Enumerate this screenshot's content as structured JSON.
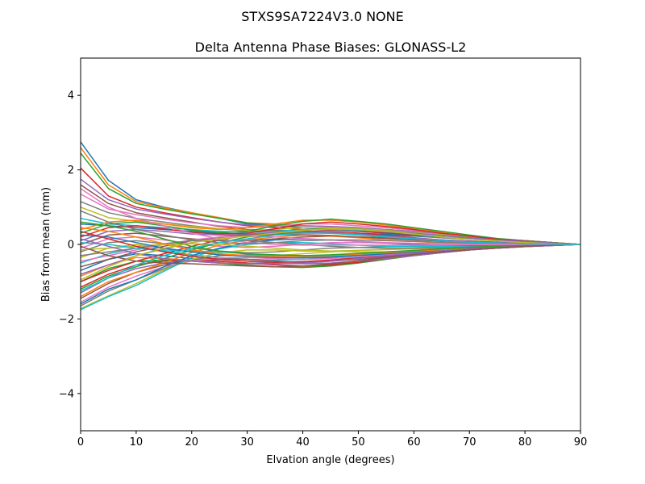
{
  "chart_data": {
    "type": "line",
    "suptitle": "STXS9SA7224V3.0 NONE",
    "title": "Delta Antenna Phase Biases: GLONASS-L2",
    "xlabel": "Elvation angle (degrees)",
    "ylabel": "Bias from mean (mm)",
    "xlim": [
      0,
      90
    ],
    "ylim": [
      -5,
      5
    ],
    "xticks": [
      0,
      10,
      20,
      30,
      40,
      50,
      60,
      70,
      80,
      90
    ],
    "yticks": [
      -4,
      -2,
      0,
      2,
      4
    ],
    "ytick_labels": [
      "−4",
      "−2",
      "0",
      "2",
      "4"
    ],
    "grid": false,
    "legend": "none",
    "palette": [
      "#1f77b4",
      "#ff7f0e",
      "#2ca02c",
      "#d62728",
      "#9467bd",
      "#8c564b",
      "#e377c2",
      "#7f7f7f",
      "#bcbd22",
      "#17becf"
    ],
    "x": [
      0,
      5,
      10,
      15,
      20,
      25,
      30,
      35,
      40,
      45,
      50,
      55,
      60,
      65,
      70,
      75,
      80,
      85,
      90
    ],
    "series": [
      {
        "values": [
          2.75,
          1.72,
          1.2,
          1.0,
          0.85,
          0.7,
          0.55,
          0.5,
          0.45,
          0.4,
          0.35,
          0.32,
          0.3,
          0.25,
          0.2,
          0.15,
          0.1,
          0.05,
          0.0
        ]
      },
      {
        "values": [
          2.6,
          1.6,
          1.15,
          0.98,
          0.85,
          0.72,
          0.58,
          0.55,
          0.5,
          0.48,
          0.45,
          0.4,
          0.35,
          0.28,
          0.2,
          0.14,
          0.1,
          0.05,
          0.0
        ]
      },
      {
        "values": [
          2.45,
          1.5,
          1.1,
          0.95,
          0.82,
          0.7,
          0.58,
          0.52,
          0.45,
          0.42,
          0.38,
          0.34,
          0.3,
          0.24,
          0.18,
          0.12,
          0.08,
          0.04,
          0.0
        ]
      },
      {
        "values": [
          2.05,
          1.3,
          1.0,
          0.85,
          0.72,
          0.6,
          0.5,
          0.45,
          0.4,
          0.38,
          0.35,
          0.3,
          0.26,
          0.2,
          0.15,
          0.1,
          0.06,
          0.03,
          0.0
        ]
      },
      {
        "values": [
          1.75,
          1.2,
          0.95,
          0.82,
          0.7,
          0.6,
          0.52,
          0.5,
          0.5,
          0.48,
          0.45,
          0.4,
          0.35,
          0.28,
          0.2,
          0.14,
          0.1,
          0.05,
          0.0
        ]
      },
      {
        "values": [
          1.6,
          1.1,
          0.85,
          0.72,
          0.6,
          0.48,
          0.4,
          0.38,
          0.35,
          0.32,
          0.3,
          0.26,
          0.22,
          0.18,
          0.14,
          0.1,
          0.06,
          0.03,
          0.0
        ]
      },
      {
        "values": [
          1.35,
          0.95,
          0.8,
          0.68,
          0.58,
          0.5,
          0.45,
          0.48,
          0.55,
          0.55,
          0.5,
          0.45,
          0.38,
          0.3,
          0.22,
          0.15,
          0.1,
          0.05,
          0.0
        ]
      },
      {
        "values": [
          1.15,
          0.85,
          0.7,
          0.6,
          0.5,
          0.42,
          0.36,
          0.35,
          0.34,
          0.32,
          0.3,
          0.27,
          0.23,
          0.18,
          0.14,
          0.1,
          0.06,
          0.03,
          0.0
        ]
      },
      {
        "values": [
          1.0,
          0.72,
          0.62,
          0.55,
          0.48,
          0.42,
          0.38,
          0.4,
          0.45,
          0.45,
          0.42,
          0.38,
          0.32,
          0.26,
          0.2,
          0.14,
          0.09,
          0.04,
          0.0
        ]
      },
      {
        "values": [
          0.7,
          0.55,
          0.5,
          0.45,
          0.4,
          0.35,
          0.32,
          0.35,
          0.4,
          0.4,
          0.38,
          0.34,
          0.3,
          0.24,
          0.18,
          0.12,
          0.08,
          0.04,
          0.0
        ]
      },
      {
        "values": [
          0.55,
          0.5,
          0.45,
          0.4,
          0.35,
          0.3,
          0.28,
          0.3,
          0.32,
          0.32,
          0.3,
          0.27,
          0.24,
          0.2,
          0.15,
          0.1,
          0.06,
          0.03,
          0.0
        ]
      },
      {
        "values": [
          0.4,
          0.6,
          0.65,
          0.55,
          0.45,
          0.4,
          0.45,
          0.55,
          0.65,
          0.65,
          0.6,
          0.52,
          0.42,
          0.32,
          0.22,
          0.15,
          0.1,
          0.05,
          0.0
        ]
      },
      {
        "values": [
          0.3,
          0.55,
          0.6,
          0.5,
          0.38,
          0.32,
          0.35,
          0.5,
          0.62,
          0.68,
          0.62,
          0.55,
          0.45,
          0.35,
          0.25,
          0.16,
          0.1,
          0.05,
          0.0
        ]
      },
      {
        "values": [
          0.2,
          0.45,
          0.5,
          0.42,
          0.32,
          0.28,
          0.3,
          0.42,
          0.55,
          0.6,
          0.55,
          0.48,
          0.4,
          0.3,
          0.22,
          0.14,
          0.09,
          0.04,
          0.0
        ]
      },
      {
        "values": [
          0.1,
          0.35,
          0.4,
          0.35,
          0.28,
          0.25,
          0.25,
          0.3,
          0.38,
          0.42,
          0.4,
          0.36,
          0.3,
          0.24,
          0.18,
          0.12,
          0.08,
          0.04,
          0.0
        ]
      },
      {
        "values": [
          0.0,
          0.25,
          0.3,
          0.22,
          0.15,
          0.1,
          0.1,
          0.15,
          0.2,
          0.22,
          0.2,
          0.18,
          0.15,
          0.12,
          0.09,
          0.06,
          0.04,
          0.02,
          0.0
        ]
      },
      {
        "values": [
          -0.1,
          0.15,
          0.2,
          0.12,
          0.02,
          -0.05,
          -0.08,
          -0.05,
          0.0,
          0.05,
          0.05,
          0.04,
          0.03,
          0.02,
          0.01,
          0.0,
          0.0,
          0.0,
          0.0
        ]
      },
      {
        "values": [
          -0.2,
          0.05,
          0.1,
          0.02,
          -0.1,
          -0.18,
          -0.22,
          -0.2,
          -0.15,
          -0.1,
          -0.08,
          -0.06,
          -0.05,
          -0.04,
          -0.03,
          -0.02,
          -0.01,
          0.0,
          0.0
        ]
      },
      {
        "values": [
          -0.35,
          -0.1,
          0.0,
          -0.1,
          -0.2,
          -0.28,
          -0.32,
          -0.3,
          -0.25,
          -0.2,
          -0.16,
          -0.13,
          -0.1,
          -0.08,
          -0.06,
          -0.04,
          -0.02,
          -0.01,
          0.0
        ]
      },
      {
        "values": [
          -0.5,
          -0.25,
          -0.1,
          -0.18,
          -0.28,
          -0.35,
          -0.4,
          -0.42,
          -0.4,
          -0.35,
          -0.3,
          -0.25,
          -0.2,
          -0.15,
          -0.1,
          -0.07,
          -0.04,
          -0.02,
          0.0
        ]
      },
      {
        "values": [
          -0.7,
          -0.4,
          -0.25,
          -0.3,
          -0.38,
          -0.45,
          -0.5,
          -0.52,
          -0.5,
          -0.45,
          -0.38,
          -0.3,
          -0.24,
          -0.18,
          -0.12,
          -0.08,
          -0.05,
          -0.02,
          0.0
        ]
      },
      {
        "values": [
          -0.85,
          -0.55,
          -0.35,
          -0.38,
          -0.42,
          -0.48,
          -0.55,
          -0.6,
          -0.6,
          -0.55,
          -0.45,
          -0.36,
          -0.28,
          -0.2,
          -0.14,
          -0.09,
          -0.05,
          -0.02,
          0.0
        ]
      },
      {
        "values": [
          -1.0,
          -0.65,
          -0.45,
          -0.42,
          -0.45,
          -0.5,
          -0.56,
          -0.6,
          -0.62,
          -0.58,
          -0.5,
          -0.4,
          -0.3,
          -0.22,
          -0.15,
          -0.1,
          -0.06,
          -0.03,
          0.0
        ]
      },
      {
        "values": [
          -1.15,
          -0.8,
          -0.55,
          -0.45,
          -0.42,
          -0.45,
          -0.5,
          -0.55,
          -0.58,
          -0.55,
          -0.48,
          -0.38,
          -0.3,
          -0.22,
          -0.15,
          -0.1,
          -0.06,
          -0.03,
          0.0
        ]
      },
      {
        "values": [
          -1.3,
          -0.9,
          -0.65,
          -0.5,
          -0.42,
          -0.4,
          -0.45,
          -0.5,
          -0.52,
          -0.5,
          -0.45,
          -0.38,
          -0.3,
          -0.22,
          -0.15,
          -0.1,
          -0.06,
          -0.03,
          0.0
        ]
      },
      {
        "values": [
          -1.45,
          -1.05,
          -0.75,
          -0.55,
          -0.42,
          -0.38,
          -0.4,
          -0.45,
          -0.48,
          -0.45,
          -0.4,
          -0.33,
          -0.26,
          -0.2,
          -0.14,
          -0.09,
          -0.05,
          -0.02,
          0.0
        ]
      },
      {
        "values": [
          -1.55,
          -1.15,
          -0.85,
          -0.6,
          -0.45,
          -0.36,
          -0.35,
          -0.38,
          -0.4,
          -0.38,
          -0.34,
          -0.28,
          -0.22,
          -0.17,
          -0.12,
          -0.08,
          -0.05,
          -0.02,
          0.0
        ]
      },
      {
        "values": [
          -1.65,
          -1.25,
          -0.95,
          -0.65,
          -0.42,
          -0.3,
          -0.28,
          -0.3,
          -0.32,
          -0.3,
          -0.27,
          -0.22,
          -0.18,
          -0.14,
          -0.1,
          -0.07,
          -0.04,
          -0.02,
          0.0
        ]
      },
      {
        "values": [
          -1.72,
          -1.38,
          -1.05,
          -0.68,
          -0.4,
          -0.22,
          -0.15,
          -0.15,
          -0.18,
          -0.18,
          -0.16,
          -0.14,
          -0.12,
          -0.1,
          -0.08,
          -0.06,
          -0.04,
          -0.02,
          0.0
        ]
      },
      {
        "values": [
          -1.75,
          -1.4,
          -1.1,
          -0.72,
          -0.35,
          -0.12,
          0.0,
          0.05,
          0.05,
          0.02,
          -0.02,
          -0.05,
          -0.06,
          -0.06,
          -0.05,
          -0.04,
          -0.03,
          -0.01,
          0.0
        ]
      },
      {
        "values": [
          -1.6,
          -1.2,
          -0.95,
          -0.6,
          -0.3,
          -0.1,
          0.05,
          0.12,
          0.15,
          0.12,
          0.08,
          0.04,
          0.0,
          -0.02,
          -0.03,
          -0.03,
          -0.02,
          -0.01,
          0.0
        ]
      },
      {
        "values": [
          -1.4,
          -1.0,
          -0.75,
          -0.5,
          -0.22,
          -0.02,
          0.12,
          0.2,
          0.25,
          0.22,
          0.18,
          0.12,
          0.08,
          0.04,
          0.02,
          0.0,
          0.0,
          0.0,
          0.0
        ]
      },
      {
        "values": [
          -1.2,
          -0.85,
          -0.6,
          -0.38,
          -0.15,
          0.05,
          0.2,
          0.28,
          0.32,
          0.3,
          0.25,
          0.2,
          0.15,
          0.1,
          0.06,
          0.03,
          0.02,
          0.01,
          0.0
        ]
      },
      {
        "values": [
          -1.0,
          -0.7,
          -0.45,
          -0.25,
          -0.05,
          0.12,
          0.25,
          0.32,
          0.36,
          0.34,
          0.3,
          0.24,
          0.18,
          0.12,
          0.08,
          0.05,
          0.03,
          0.01,
          0.0
        ]
      },
      {
        "values": [
          -0.8,
          -0.55,
          -0.3,
          -0.12,
          0.05,
          0.18,
          0.28,
          0.32,
          0.34,
          0.32,
          0.28,
          0.22,
          0.17,
          0.12,
          0.08,
          0.05,
          0.03,
          0.01,
          0.0
        ]
      },
      {
        "values": [
          -0.6,
          -0.4,
          -0.2,
          -0.05,
          0.1,
          0.2,
          0.25,
          0.26,
          0.26,
          0.24,
          0.2,
          0.16,
          0.12,
          0.09,
          0.06,
          0.04,
          0.02,
          0.01,
          0.0
        ]
      },
      {
        "values": [
          -0.45,
          -0.3,
          -0.15,
          0.0,
          0.12,
          0.2,
          0.22,
          0.2,
          0.16,
          0.12,
          0.08,
          0.05,
          0.03,
          0.02,
          0.01,
          0.0,
          0.0,
          0.0,
          0.0
        ]
      },
      {
        "values": [
          -0.3,
          -0.2,
          -0.1,
          0.02,
          0.1,
          0.12,
          0.1,
          0.05,
          0.0,
          -0.05,
          -0.08,
          -0.1,
          -0.1,
          -0.09,
          -0.07,
          -0.05,
          -0.03,
          -0.01,
          0.0
        ]
      },
      {
        "values": [
          -0.15,
          -0.1,
          -0.05,
          0.0,
          0.02,
          0.0,
          -0.05,
          -0.1,
          -0.15,
          -0.18,
          -0.2,
          -0.2,
          -0.18,
          -0.15,
          -0.11,
          -0.07,
          -0.04,
          -0.02,
          0.0
        ]
      },
      {
        "values": [
          0.05,
          0.0,
          -0.1,
          -0.15,
          -0.18,
          -0.2,
          -0.25,
          -0.3,
          -0.33,
          -0.32,
          -0.28,
          -0.24,
          -0.2,
          -0.15,
          -0.1,
          -0.07,
          -0.04,
          -0.02,
          0.0
        ]
      },
      {
        "values": [
          0.25,
          0.2,
          0.05,
          -0.1,
          -0.2,
          -0.28,
          -0.32,
          -0.35,
          -0.36,
          -0.34,
          -0.3,
          -0.25,
          -0.2,
          -0.15,
          -0.1,
          -0.06,
          -0.03,
          -0.01,
          0.0
        ]
      },
      {
        "values": [
          0.45,
          0.35,
          0.2,
          0.02,
          -0.15,
          -0.25,
          -0.3,
          -0.32,
          -0.32,
          -0.3,
          -0.26,
          -0.22,
          -0.18,
          -0.14,
          -0.1,
          -0.06,
          -0.03,
          -0.01,
          0.0
        ]
      },
      {
        "values": [
          0.6,
          0.5,
          0.35,
          0.15,
          -0.05,
          -0.18,
          -0.25,
          -0.28,
          -0.3,
          -0.28,
          -0.24,
          -0.2,
          -0.16,
          -0.12,
          -0.08,
          -0.05,
          -0.03,
          -0.01,
          0.0
        ]
      },
      {
        "values": [
          0.35,
          0.15,
          -0.05,
          -0.2,
          -0.32,
          -0.4,
          -0.45,
          -0.48,
          -0.46,
          -0.42,
          -0.36,
          -0.3,
          -0.24,
          -0.18,
          -0.12,
          -0.08,
          -0.05,
          -0.02,
          0.0
        ]
      },
      {
        "values": [
          0.15,
          -0.05,
          -0.25,
          -0.38,
          -0.45,
          -0.5,
          -0.52,
          -0.52,
          -0.5,
          -0.45,
          -0.38,
          -0.3,
          -0.24,
          -0.18,
          -0.12,
          -0.08,
          -0.05,
          -0.02,
          0.0
        ]
      },
      {
        "values": [
          -0.05,
          -0.3,
          -0.45,
          -0.5,
          -0.52,
          -0.55,
          -0.58,
          -0.6,
          -0.58,
          -0.52,
          -0.44,
          -0.35,
          -0.27,
          -0.2,
          -0.14,
          -0.09,
          -0.05,
          -0.02,
          0.0
        ]
      },
      {
        "values": [
          1.5,
          1.0,
          0.7,
          0.5,
          0.3,
          0.15,
          0.05,
          0.0,
          -0.02,
          -0.02,
          -0.02,
          -0.02,
          -0.02,
          -0.02,
          -0.01,
          -0.01,
          0.0,
          0.0,
          0.0
        ]
      },
      {
        "values": [
          0.9,
          0.6,
          0.4,
          0.25,
          0.12,
          0.05,
          0.02,
          0.05,
          0.1,
          0.12,
          0.12,
          0.1,
          0.08,
          0.06,
          0.04,
          0.03,
          0.02,
          0.01,
          0.0
        ]
      },
      {
        "values": [
          -0.95,
          -0.6,
          -0.3,
          -0.1,
          0.05,
          0.15,
          0.22,
          0.3,
          0.38,
          0.42,
          0.4,
          0.35,
          0.28,
          0.2,
          0.14,
          0.09,
          0.05,
          0.02,
          0.0
        ]
      },
      {
        "values": [
          -1.25,
          -0.9,
          -0.55,
          -0.3,
          -0.1,
          0.05,
          0.15,
          0.25,
          0.3,
          0.3,
          0.26,
          0.2,
          0.15,
          0.1,
          0.06,
          0.04,
          0.02,
          0.01,
          0.0
        ]
      }
    ]
  }
}
